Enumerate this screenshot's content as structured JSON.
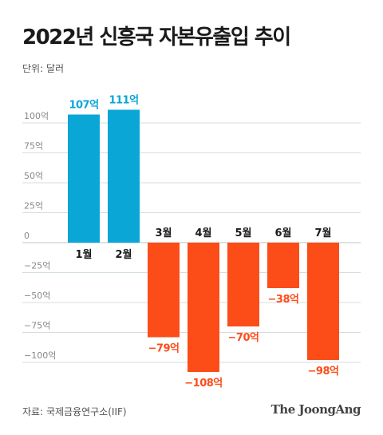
{
  "title": "2022년 신흥국 자본유출입 추이",
  "unit_label": "단위: 달러",
  "source": "자료: 국제금융연구소(IIF)",
  "brand": "The JoongAng",
  "colors": {
    "positive": "#0aa6d6",
    "negative": "#fc4d19",
    "grid": "#d4dde2",
    "tick": "#888888"
  },
  "chart_data": {
    "type": "bar",
    "categories": [
      "1월",
      "2월",
      "3월",
      "4월",
      "5월",
      "6월",
      "7월"
    ],
    "values": [
      107,
      111,
      -79,
      -108,
      -70,
      -38,
      -98
    ],
    "data_labels": [
      "107억",
      "111억",
      "−79억",
      "−108억",
      "−70억",
      "−38억",
      "−98억"
    ],
    "yticks": [
      100,
      75,
      50,
      25,
      0,
      -25,
      -50,
      -75,
      -100
    ],
    "ytick_labels": [
      "100억",
      "75억",
      "50억",
      "25억",
      "0",
      "−25억",
      "−50억",
      "−75억",
      "−100억"
    ],
    "ylim": [
      -115,
      115
    ],
    "grid": true,
    "xlabel": "",
    "ylabel": ""
  }
}
